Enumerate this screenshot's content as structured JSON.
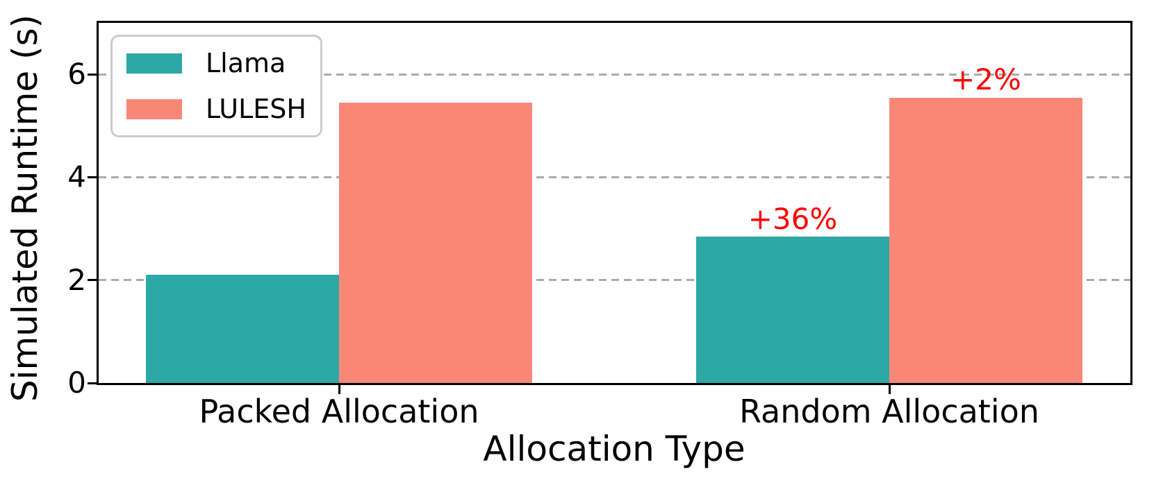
{
  "chart_data": {
    "type": "bar",
    "title": "",
    "xlabel": "Allocation Type",
    "ylabel": "Simulated Runtime (s)",
    "categories": [
      "Packed Allocation",
      "Random Allocation"
    ],
    "series": [
      {
        "name": "Llama",
        "color": "#2DA8A4",
        "values": [
          2.1,
          2.85
        ]
      },
      {
        "name": "LULESH",
        "color": "#F98778",
        "values": [
          5.45,
          5.55
        ]
      }
    ],
    "annotations": [
      {
        "text": "+36%",
        "category_index": 1,
        "series_index": 0,
        "color": "#ff0000"
      },
      {
        "text": "+2%",
        "category_index": 1,
        "series_index": 1,
        "color": "#ff0000"
      }
    ],
    "ylim": [
      0,
      7
    ],
    "yticks": [
      0,
      2,
      4,
      6
    ],
    "grid": "horizontal dashed gray at yticks above 0, behind bars",
    "legend_position": "upper-left",
    "colors": {
      "grid": "#ababab",
      "axis": "#000000",
      "annotation": "#ff0000",
      "legend_border": "#cccccc"
    }
  }
}
